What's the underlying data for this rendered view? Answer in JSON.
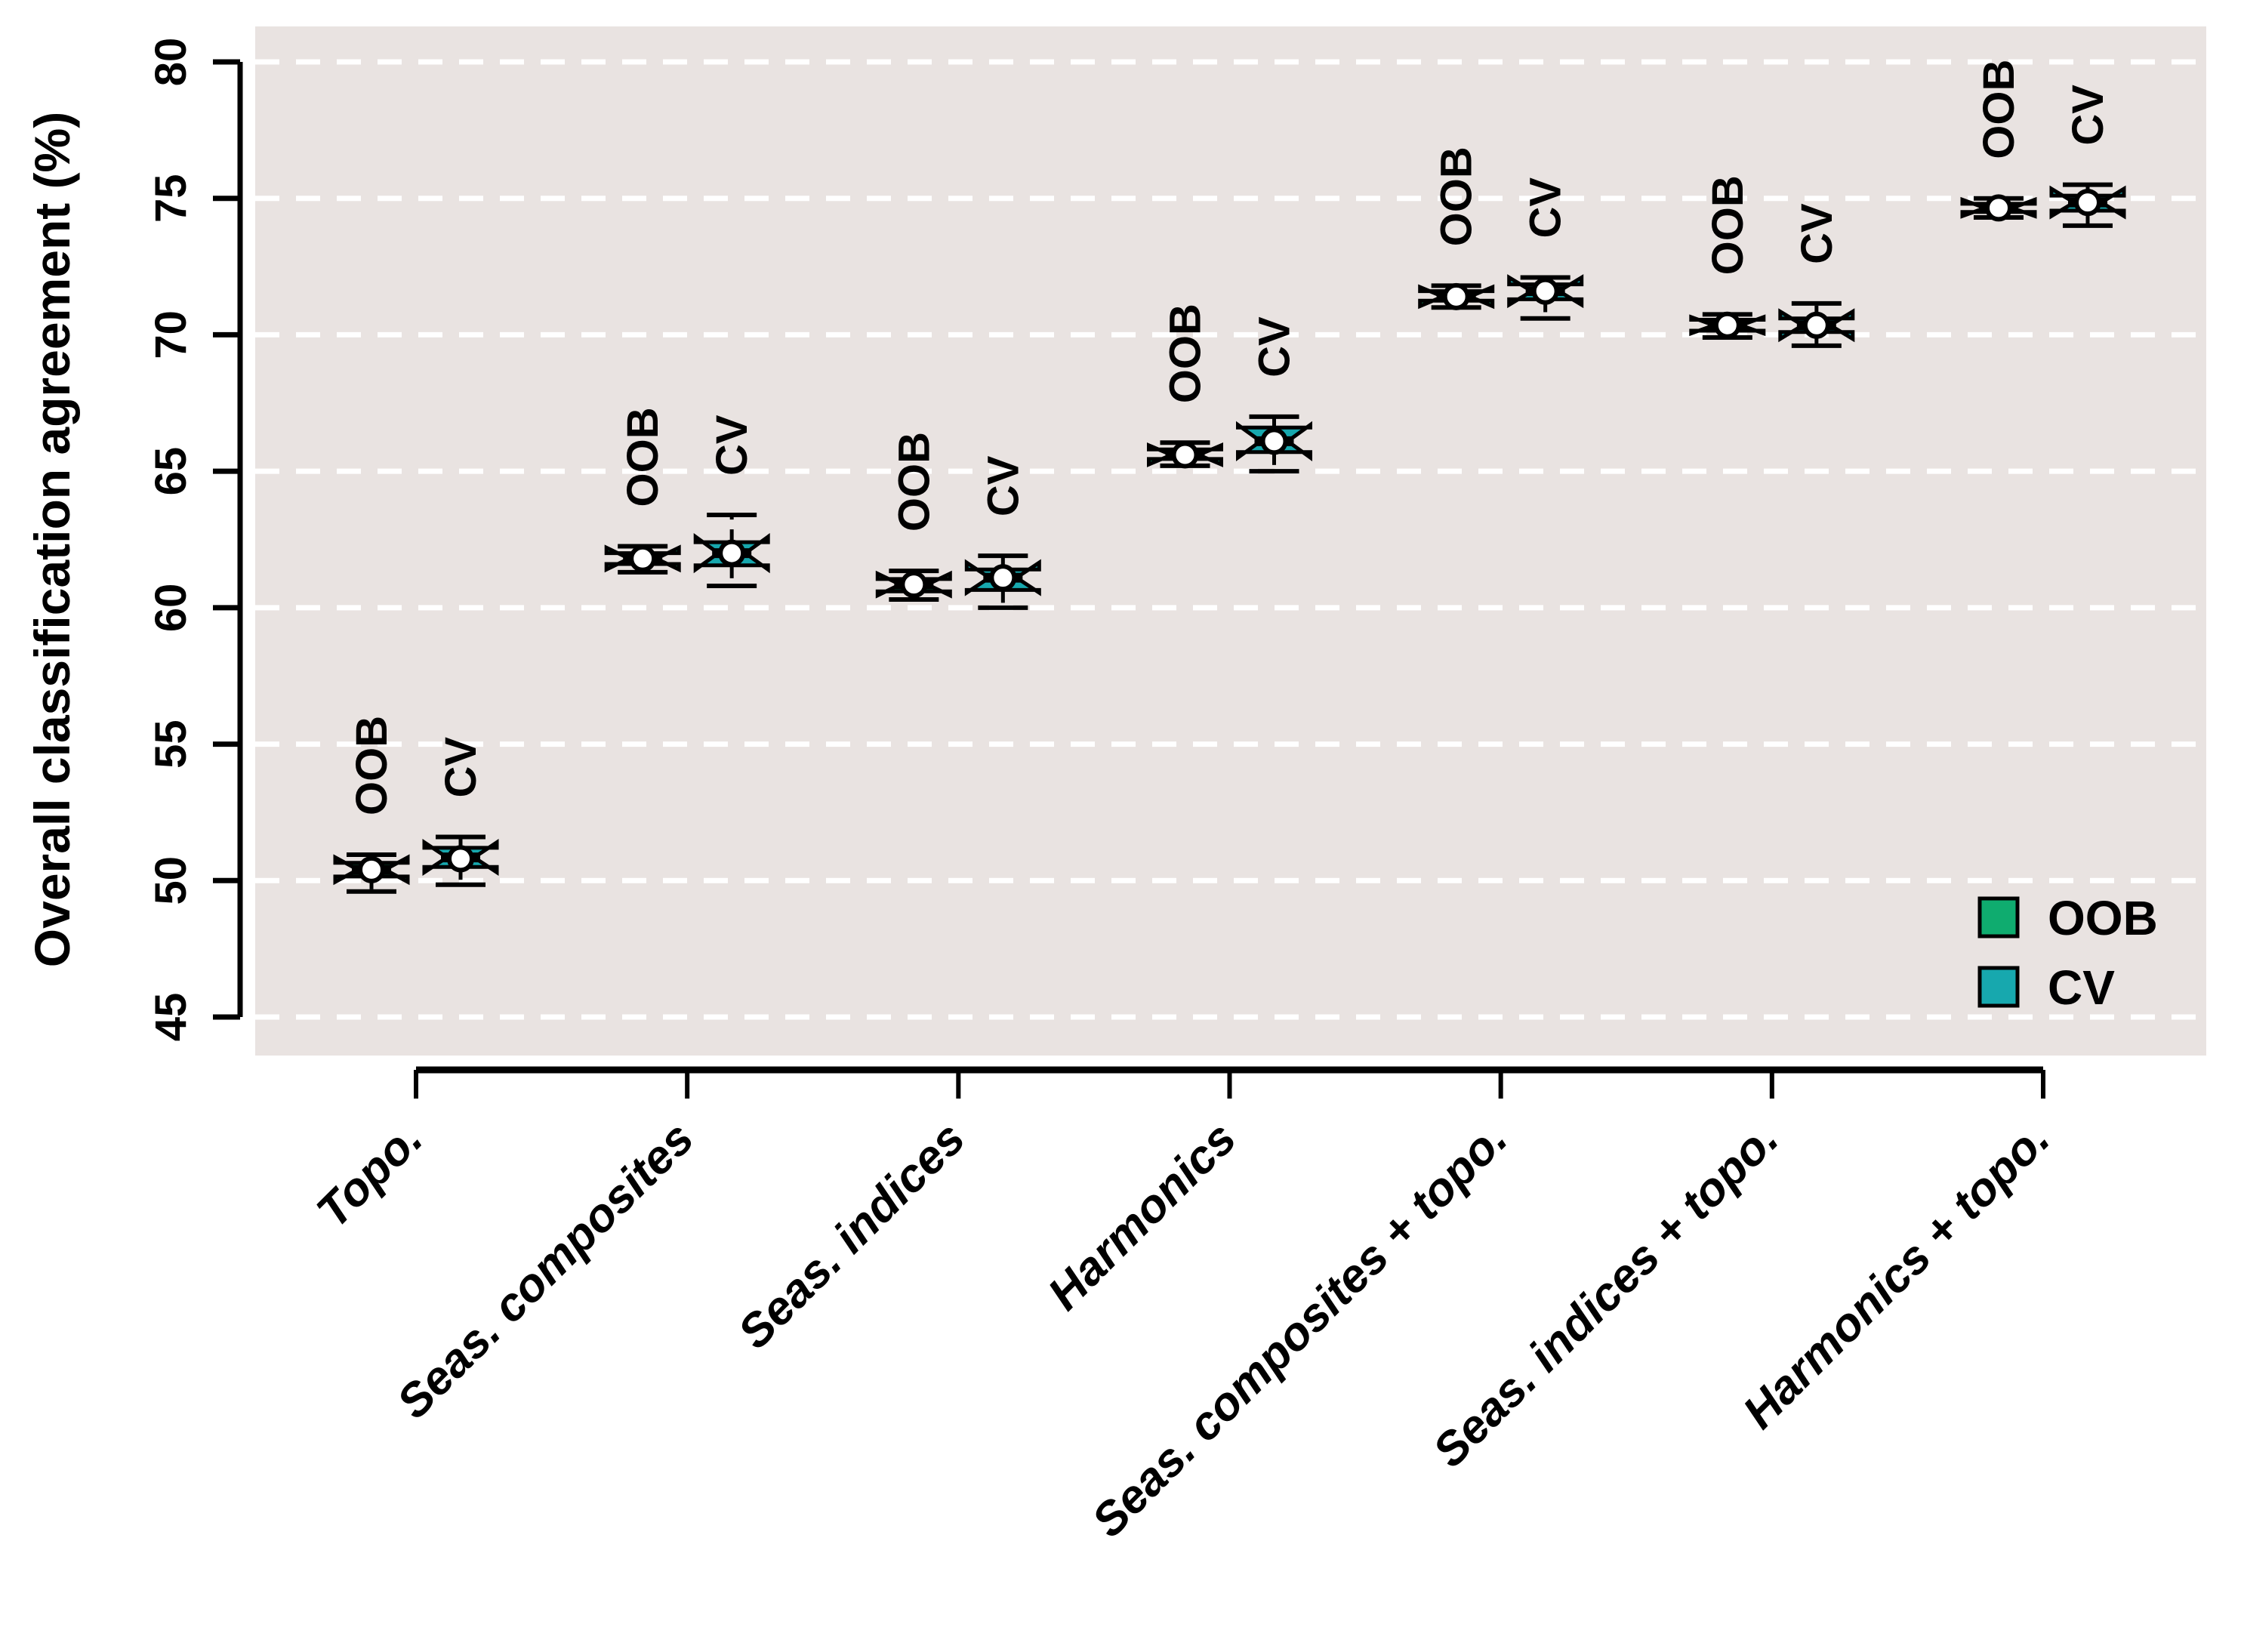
{
  "chart_data": {
    "type": "boxplot",
    "title": "",
    "ylabel": "Overall classification agreement (%)",
    "xlabel": "",
    "ylim": [
      45,
      80
    ],
    "y_ticks": [
      45,
      50,
      55,
      60,
      65,
      70,
      75,
      80
    ],
    "grid": "horizontal-white-dashed",
    "panel_background": "#E9E3E1",
    "gridline_color": "#FFFFFF",
    "axis_color": "#000000",
    "categories": [
      "Topo.",
      "Seas. composites",
      "Seas. indices",
      "Harmonics",
      "Seas. composites + topo.",
      "Seas. indices + topo.",
      "Harmonics + topo."
    ],
    "box_annotation_labels": [
      "OOB",
      "CV"
    ],
    "series": [
      {
        "name": "OOB",
        "color": "#0FAC6F",
        "boxes": [
          {
            "lo": 49.6,
            "q1": 50.15,
            "med": 50.4,
            "q3": 50.65,
            "hi": 50.95,
            "mean": 50.4,
            "notch": 0.45
          },
          {
            "lo": 61.3,
            "q1": 61.6,
            "med": 61.8,
            "q3": 62.0,
            "hi": 62.25,
            "mean": 61.8,
            "notch": 0.4
          },
          {
            "lo": 60.3,
            "q1": 60.6,
            "med": 60.85,
            "q3": 61.05,
            "hi": 61.35,
            "mean": 60.85,
            "notch": 0.4
          },
          {
            "lo": 65.2,
            "q1": 65.45,
            "med": 65.6,
            "q3": 65.8,
            "hi": 66.05,
            "mean": 65.6,
            "notch": 0.35
          },
          {
            "lo": 71.0,
            "q1": 71.25,
            "med": 71.4,
            "q3": 71.6,
            "hi": 71.8,
            "mean": 71.4,
            "notch": 0.35
          },
          {
            "lo": 69.9,
            "q1": 70.15,
            "med": 70.35,
            "q3": 70.55,
            "hi": 70.75,
            "mean": 70.35,
            "notch": 0.3
          },
          {
            "lo": 74.3,
            "q1": 74.5,
            "med": 74.65,
            "q3": 74.8,
            "hi": 75.0,
            "mean": 74.65,
            "notch": 0.3
          }
        ]
      },
      {
        "name": "CV",
        "color": "#17A8AE",
        "boxes": [
          {
            "lo": 49.85,
            "q1": 50.5,
            "med": 50.85,
            "q3": 51.2,
            "hi": 51.6,
            "mean": 50.8,
            "notch": 0.55
          },
          {
            "lo": 60.8,
            "q1": 61.55,
            "med": 62.0,
            "q3": 62.4,
            "hi": 63.4,
            "mean": 62.0,
            "notch": 0.6
          },
          {
            "lo": 60.0,
            "q1": 60.65,
            "med": 61.1,
            "q3": 61.4,
            "hi": 61.9,
            "mean": 61.1,
            "notch": 0.55
          },
          {
            "lo": 65.0,
            "q1": 65.7,
            "med": 66.1,
            "q3": 66.6,
            "hi": 67.0,
            "mean": 66.1,
            "notch": 0.6
          },
          {
            "lo": 70.6,
            "q1": 71.3,
            "med": 71.6,
            "q3": 71.85,
            "hi": 72.1,
            "mean": 71.6,
            "notch": 0.5
          },
          {
            "lo": 69.6,
            "q1": 70.1,
            "med": 70.35,
            "q3": 70.6,
            "hi": 71.15,
            "mean": 70.35,
            "notch": 0.5
          },
          {
            "lo": 74.0,
            "q1": 74.55,
            "med": 74.85,
            "q3": 75.1,
            "hi": 75.5,
            "mean": 74.85,
            "notch": 0.5
          }
        ]
      }
    ],
    "legend": {
      "position": "bottom-right-inside-panel",
      "entries": [
        {
          "label": "OOB",
          "color": "#0FAC6F"
        },
        {
          "label": "CV",
          "color": "#17A8AE"
        }
      ]
    },
    "marker": {
      "shape": "circle",
      "fill": "#FFFFFF",
      "meaning": "mean"
    }
  }
}
